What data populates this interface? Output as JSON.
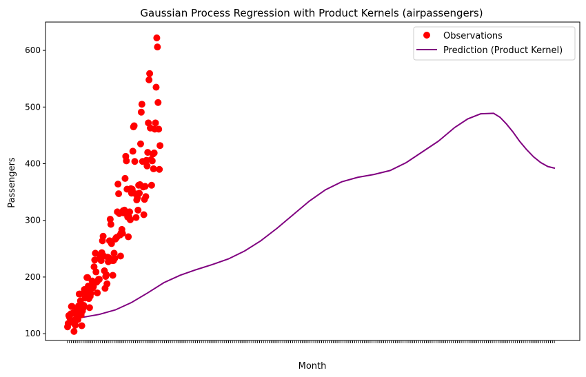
{
  "chart_data": {
    "type": "scatter",
    "title": "Gaussian Process Regression with Product Kernels (airpassengers)",
    "xlabel": "Month",
    "ylabel": "Passengers",
    "ylim": [
      88,
      650
    ],
    "yticks": [
      100,
      200,
      300,
      400,
      500,
      600
    ],
    "grid": false,
    "legend_position": "top-right",
    "colors": {
      "observations": "#ff0000",
      "prediction": "#800080"
    },
    "series": [
      {
        "name": "Observations",
        "kind": "scatter",
        "x": [
          1,
          2,
          3,
          4,
          5,
          6,
          7,
          8,
          9,
          10,
          11,
          12,
          13,
          14,
          15,
          16,
          17,
          18,
          19,
          20,
          21,
          22,
          23,
          24,
          25,
          26,
          27,
          28,
          29,
          30,
          31,
          32,
          33,
          34,
          35,
          36,
          37,
          38,
          39,
          40,
          41,
          42,
          43,
          44,
          45,
          46,
          47,
          48,
          49,
          50,
          51,
          52,
          53,
          54,
          55,
          56,
          57,
          58,
          59,
          60,
          61,
          62,
          63,
          64,
          65,
          66,
          67,
          68,
          69,
          70,
          71,
          72,
          73,
          74,
          75,
          76,
          77,
          78,
          79,
          80,
          81,
          82,
          83,
          84,
          85,
          86,
          87,
          88,
          89,
          90,
          91,
          92,
          93,
          94,
          95,
          96,
          97,
          98,
          99,
          100,
          101,
          102,
          103,
          104,
          105,
          106,
          107,
          108,
          109,
          110,
          111,
          112,
          113,
          114,
          115,
          116,
          117,
          118,
          119,
          120,
          121,
          122,
          123,
          124,
          125,
          126,
          127,
          128,
          129,
          130,
          131,
          132,
          133,
          134,
          135,
          136,
          137,
          138,
          139,
          140,
          141,
          142,
          143,
          144
        ],
        "y": [
          112,
          118,
          132,
          129,
          121,
          135,
          148,
          148,
          136,
          119,
          104,
          118,
          115,
          126,
          141,
          135,
          125,
          149,
          170,
          170,
          158,
          133,
          114,
          140,
          145,
          150,
          178,
          163,
          172,
          178,
          199,
          199,
          184,
          162,
          146,
          166,
          171,
          180,
          193,
          181,
          183,
          218,
          230,
          242,
          209,
          191,
          172,
          194,
          196,
          196,
          236,
          235,
          229,
          243,
          264,
          272,
          237,
          211,
          180,
          201,
          204,
          188,
          235,
          227,
          234,
          264,
          302,
          293,
          259,
          229,
          203,
          229,
          242,
          233,
          267,
          269,
          270,
          315,
          364,
          347,
          312,
          274,
          237,
          278,
          284,
          277,
          317,
          313,
          318,
          374,
          413,
          405,
          355,
          306,
          271,
          306,
          315,
          301,
          356,
          348,
          355,
          422,
          465,
          467,
          404,
          347,
          305,
          336,
          340,
          318,
          362,
          348,
          363,
          435,
          491,
          505,
          404,
          359,
          310,
          337,
          360,
          342,
          406,
          396,
          420,
          472,
          548,
          559,
          463,
          407,
          362,
          405,
          417,
          391,
          419,
          461,
          472,
          535,
          622,
          606,
          508,
          461,
          390,
          432
        ]
      },
      {
        "name": "Prediction (Product Kernel)",
        "kind": "line",
        "x": [
          1,
          25,
          50,
          75,
          100,
          125,
          150,
          175,
          200,
          225,
          250,
          275,
          300,
          325,
          350,
          375,
          400,
          425,
          450,
          475,
          500,
          525,
          550,
          575,
          600,
          620,
          640,
          660,
          670,
          680,
          690,
          700,
          711,
          722,
          733,
          744,
          755
        ],
        "y": [
          124,
          129,
          134,
          142,
          155,
          172,
          190,
          203,
          213,
          222,
          232,
          246,
          264,
          286,
          310,
          334,
          354,
          368,
          376,
          381,
          388,
          402,
          421,
          440,
          464,
          479,
          488,
          489,
          482,
          470,
          456,
          440,
          425,
          412,
          402,
          395,
          392
        ]
      }
    ]
  }
}
